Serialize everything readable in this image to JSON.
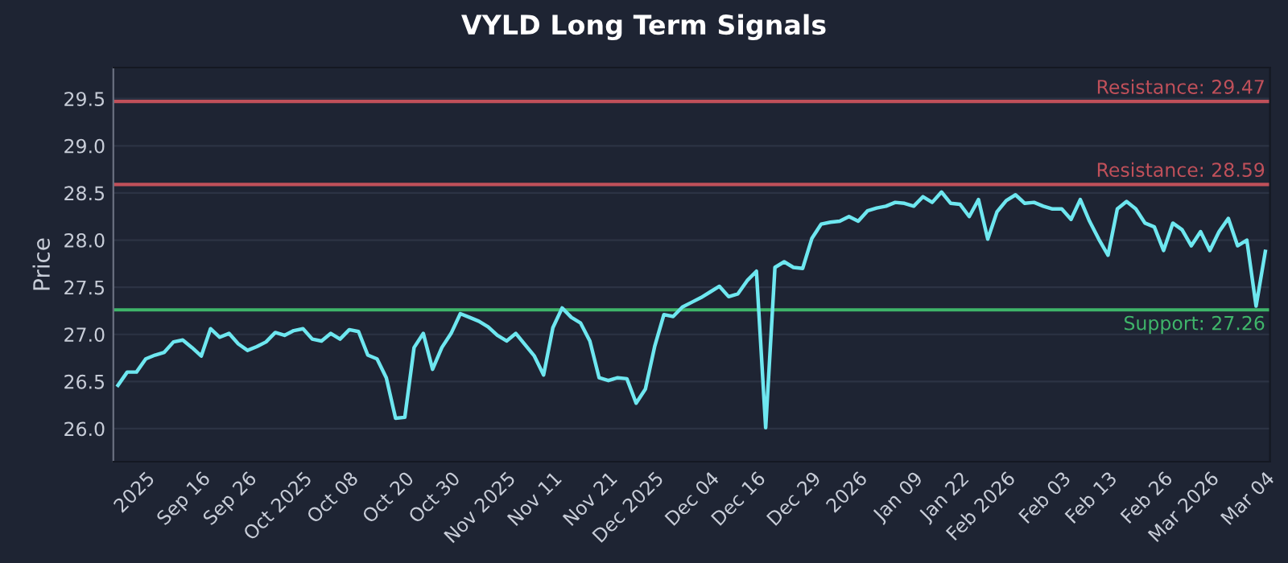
{
  "chart_data": {
    "type": "line",
    "title": "VYLD Long Term Signals",
    "ylabel": "Price",
    "categories": [
      null,
      null,
      null,
      "2025",
      null,
      null,
      null,
      null,
      null,
      "Sep 16",
      null,
      null,
      null,
      null,
      "Sep 26",
      null,
      null,
      null,
      null,
      null,
      "Oct 2025",
      null,
      null,
      null,
      null,
      "Oct 08",
      null,
      null,
      null,
      null,
      null,
      "Oct 20",
      null,
      null,
      null,
      null,
      "Oct 30",
      null,
      null,
      null,
      null,
      null,
      "Nov 2025",
      null,
      null,
      null,
      null,
      "Nov 11",
      null,
      null,
      null,
      null,
      null,
      "Nov 21",
      null,
      null,
      null,
      null,
      "Dec 2025",
      null,
      null,
      null,
      null,
      null,
      "Dec 04",
      null,
      null,
      null,
      null,
      "Dec 16",
      null,
      null,
      null,
      null,
      null,
      "Dec 29",
      null,
      null,
      null,
      null,
      "2026",
      null,
      null,
      null,
      null,
      null,
      "Jan 09",
      null,
      null,
      null,
      null,
      "Jan 22",
      null,
      null,
      null,
      null,
      "Feb 2026",
      null,
      null,
      null,
      null,
      null,
      "Feb 03",
      null,
      null,
      null,
      null,
      "Feb 13",
      null,
      null,
      null,
      null,
      null,
      "Feb 26",
      null,
      null,
      null,
      null,
      "Mar 2026",
      null,
      null,
      null,
      null,
      null,
      "Mar 04"
    ],
    "series": [
      {
        "color": "#6ee7f0",
        "values": [
          26.46,
          26.6,
          26.6,
          26.74,
          26.78,
          26.81,
          26.92,
          26.94,
          26.86,
          26.77,
          27.06,
          26.97,
          27.01,
          26.9,
          26.83,
          26.87,
          26.92,
          27.02,
          26.99,
          27.04,
          27.06,
          26.95,
          26.93,
          27.01,
          26.95,
          27.05,
          27.03,
          26.78,
          26.74,
          26.54,
          26.11,
          26.12,
          26.86,
          27.01,
          26.63,
          26.86,
          27.01,
          27.22,
          27.18,
          27.14,
          27.08,
          26.99,
          26.93,
          27.01,
          26.89,
          26.77,
          26.57,
          27.07,
          27.28,
          27.18,
          27.12,
          26.93,
          26.54,
          26.51,
          26.54,
          26.53,
          26.27,
          26.42,
          26.87,
          27.21,
          27.19,
          27.29,
          27.34,
          27.39,
          27.45,
          27.51,
          27.4,
          27.43,
          27.57,
          27.67,
          26.01,
          27.71,
          27.77,
          27.71,
          27.7,
          28.02,
          28.17,
          28.19,
          28.2,
          28.25,
          28.2,
          28.31,
          28.34,
          28.36,
          28.4,
          28.39,
          28.36,
          28.46,
          28.4,
          28.51,
          28.39,
          28.38,
          28.25,
          28.43,
          28.01,
          28.3,
          28.42,
          28.48,
          28.39,
          28.4,
          28.36,
          28.33,
          28.33,
          28.22,
          28.43,
          28.2,
          28.01,
          27.84,
          28.33,
          28.41,
          28.33,
          28.18,
          28.14,
          27.89,
          28.18,
          28.11,
          27.94,
          28.09,
          27.89,
          28.09,
          28.23,
          27.94,
          28.0,
          27.3,
          27.88
        ]
      }
    ],
    "ylim": [
      25.65,
      29.83
    ],
    "yticks": [
      {
        "value": 26,
        "label": "26.0"
      },
      26.5,
      {
        "value": 27,
        "label": "27.0"
      },
      27.5,
      {
        "value": 28,
        "label": "28.0"
      },
      28.5,
      {
        "value": 29,
        "label": "29.0"
      },
      29.5
    ],
    "grid": "y",
    "legend": false,
    "marker": "none",
    "line_style": "solid",
    "ref_lines": [
      {
        "axis": "y",
        "value": 29.47,
        "label": "Resistance: 29.47",
        "color": "#c0505a"
      },
      {
        "axis": "y",
        "value": 28.59,
        "label": "Resistance: 28.59",
        "color": "#c0505a"
      },
      {
        "axis": "y",
        "value": 27.26,
        "label": "Support: 27.26",
        "color": "#3fb56a"
      }
    ]
  }
}
